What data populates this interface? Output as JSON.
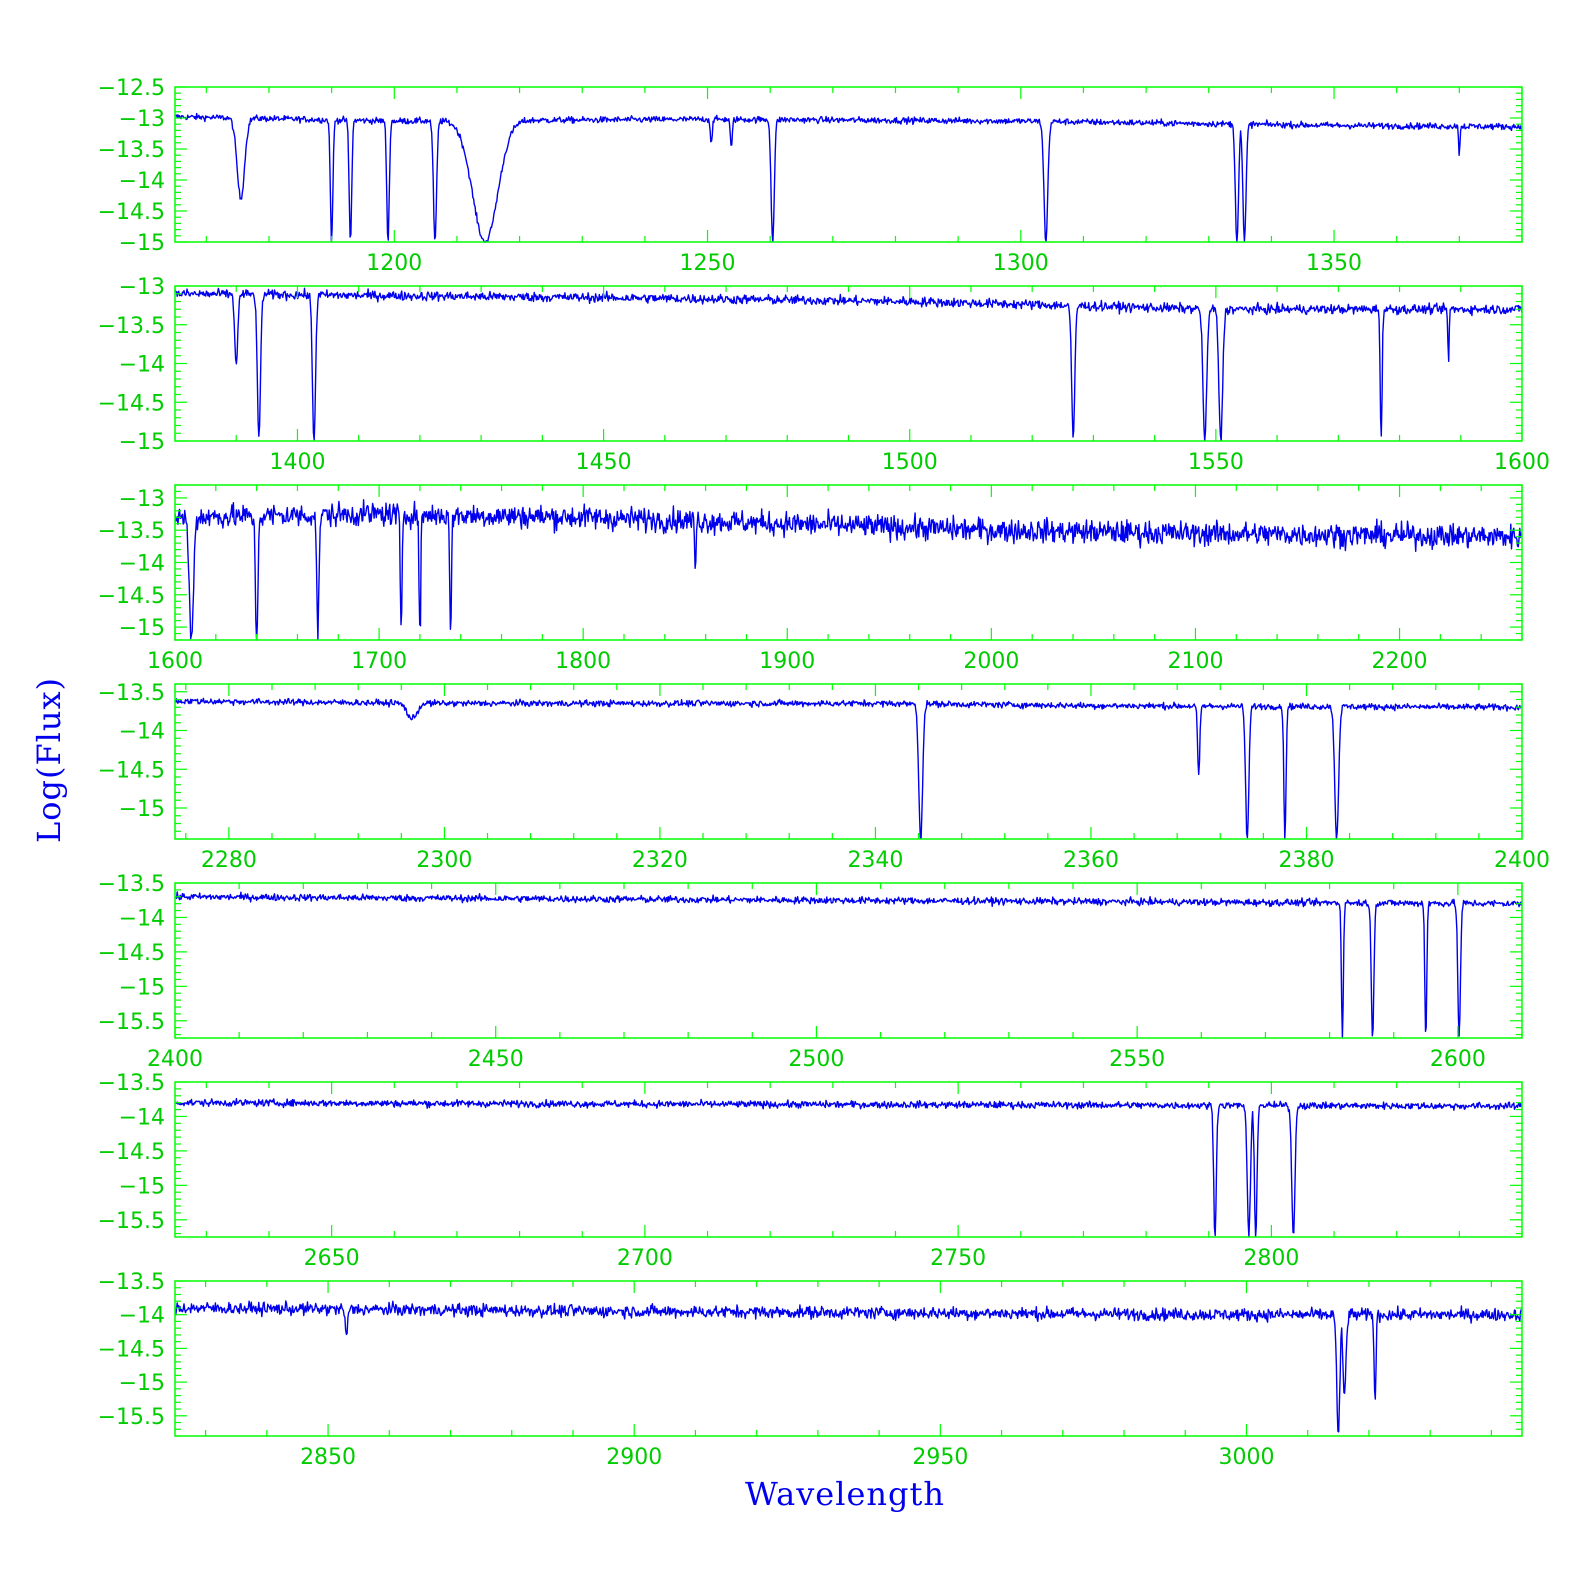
{
  "colors": {
    "frame": "#00ff00",
    "tick_labels": "#00cc00",
    "data": "#0000ee",
    "axis_titles": "#0000ee"
  },
  "chart_data": {
    "type": "line",
    "xlabel": "Wavelength",
    "ylabel": "Log(Flux)",
    "grid": false,
    "panels": [
      {
        "xlim": [
          1165,
          1380
        ],
        "ylim": [
          -15,
          -12.5
        ],
        "xticks": [
          1200,
          1250,
          1300,
          1350
        ],
        "xtick_labels": [
          "1200",
          "1250",
          "1300",
          "1350"
        ],
        "yticks": [
          -12.5,
          -13,
          -13.5,
          -14,
          -14.5,
          -15
        ],
        "ytick_labels": [
          "-12.5",
          "-13",
          "-13.5",
          "-14",
          "-14.5",
          "-15"
        ],
        "continuum": [
          [
            1165,
            -12.98
          ],
          [
            1200,
            -13.05
          ],
          [
            1250,
            -13.02
          ],
          [
            1300,
            -13.05
          ],
          [
            1350,
            -13.12
          ],
          [
            1380,
            -13.14
          ]
        ],
        "features": [
          [
            1175.5,
            -14.3,
            1.2
          ],
          [
            1190,
            -15.0,
            0.4
          ],
          [
            1193,
            -15.0,
            0.4
          ],
          [
            1199,
            -15.0,
            0.4
          ],
          [
            1206.5,
            -15.0,
            0.5
          ],
          [
            1214.5,
            -15.0,
            4.0
          ],
          [
            1250.6,
            -13.4,
            0.3
          ],
          [
            1253.8,
            -13.5,
            0.3
          ],
          [
            1260.4,
            -15.0,
            0.5
          ],
          [
            1304,
            -15.0,
            0.6
          ],
          [
            1334.5,
            -15.0,
            0.5
          ],
          [
            1335.7,
            -15.0,
            0.5
          ],
          [
            1370,
            -13.6,
            0.2
          ]
        ],
        "noise": 0.05
      },
      {
        "xlim": [
          1380,
          1600
        ],
        "ylim": [
          -15,
          -13
        ],
        "xticks": [
          1400,
          1450,
          1500,
          1550,
          1600
        ],
        "xtick_labels": [
          "1400",
          "1450",
          "1500",
          "1550",
          "1600"
        ],
        "yticks": [
          -13,
          -13.5,
          -14,
          -14.5,
          -15
        ],
        "ytick_labels": [
          "-13",
          "-13.5",
          "-14",
          "-14.5",
          "-15"
        ],
        "continuum": [
          [
            1380,
            -13.1
          ],
          [
            1450,
            -13.15
          ],
          [
            1500,
            -13.2
          ],
          [
            1550,
            -13.3
          ],
          [
            1600,
            -13.3
          ]
        ],
        "features": [
          [
            1390,
            -14.0,
            0.5
          ],
          [
            1393.7,
            -15.0,
            0.5
          ],
          [
            1402.7,
            -15.0,
            0.5
          ],
          [
            1526.7,
            -15.0,
            0.5
          ],
          [
            1548.2,
            -15.0,
            0.6
          ],
          [
            1550.8,
            -15.0,
            0.6
          ],
          [
            1577,
            -15.0,
            0.3
          ],
          [
            1588,
            -14.0,
            0.2
          ]
        ],
        "noise": 0.06
      },
      {
        "xlim": [
          1600,
          2260
        ],
        "ylim": [
          -15.2,
          -12.8
        ],
        "xticks": [
          1600,
          1700,
          1800,
          1900,
          2000,
          2100,
          2200
        ],
        "xtick_labels": [
          "1600",
          "1700",
          "1800",
          "1900",
          "2000",
          "2100",
          "2200"
        ],
        "yticks": [
          -13,
          -13.5,
          -14,
          -14.5,
          -15
        ],
        "ytick_labels": [
          "-13",
          "-13.5",
          "-14",
          "-14.5",
          "-15"
        ],
        "continuum": [
          [
            1600,
            -13.3
          ],
          [
            1700,
            -13.25
          ],
          [
            1800,
            -13.3
          ],
          [
            1900,
            -13.4
          ],
          [
            2000,
            -13.5
          ],
          [
            2100,
            -13.55
          ],
          [
            2260,
            -13.6
          ]
        ],
        "features": [
          [
            1608,
            -15.2,
            2.0
          ],
          [
            1640,
            -15.2,
            1.2
          ],
          [
            1670,
            -15.2,
            1.0
          ],
          [
            1710.8,
            -15.2,
            0.8
          ],
          [
            1720,
            -15.2,
            0.8
          ],
          [
            1735,
            -15.2,
            0.8
          ],
          [
            1855,
            -14.2,
            0.6
          ]
        ],
        "noise": 0.18
      },
      {
        "xlim": [
          2275,
          2400
        ],
        "ylim": [
          -15.4,
          -13.4
        ],
        "xticks": [
          2280,
          2300,
          2320,
          2340,
          2360,
          2380,
          2400
        ],
        "xtick_labels": [
          "2280",
          "2300",
          "2320",
          "2340",
          "2360",
          "2380",
          "2400"
        ],
        "yticks": [
          -13.5,
          -14,
          -14.5,
          -15
        ],
        "ytick_labels": [
          "-13.5",
          "-14",
          "-14.5",
          "-15"
        ],
        "continuum": [
          [
            2275,
            -13.62
          ],
          [
            2300,
            -13.65
          ],
          [
            2340,
            -13.65
          ],
          [
            2360,
            -13.68
          ],
          [
            2400,
            -13.7
          ]
        ],
        "features": [
          [
            2297,
            -13.85,
            0.9
          ],
          [
            2344.2,
            -15.4,
            0.35
          ],
          [
            2374.5,
            -15.4,
            0.3
          ],
          [
            2382.8,
            -15.4,
            0.35
          ],
          [
            2370,
            -14.6,
            0.2
          ],
          [
            2378,
            -15.4,
            0.2
          ]
        ],
        "noise": 0.04
      },
      {
        "xlim": [
          2400,
          2610
        ],
        "ylim": [
          -15.75,
          -13.5
        ],
        "xticks": [
          2400,
          2450,
          2500,
          2550,
          2600
        ],
        "xtick_labels": [
          "2400",
          "2450",
          "2500",
          "2550",
          "2600"
        ],
        "yticks": [
          -13.5,
          -14,
          -14.5,
          -15,
          -15.5
        ],
        "ytick_labels": [
          "-13.5",
          "-14",
          "-14.5",
          "-15",
          "-15.5"
        ],
        "continuum": [
          [
            2400,
            -13.7
          ],
          [
            2500,
            -13.75
          ],
          [
            2610,
            -13.8
          ]
        ],
        "features": [
          [
            2586.7,
            -15.75,
            0.4
          ],
          [
            2600.2,
            -15.75,
            0.4
          ],
          [
            2595,
            -15.75,
            0.3
          ],
          [
            2582,
            -15.75,
            0.3
          ]
        ],
        "noise": 0.05
      },
      {
        "xlim": [
          2625,
          2840
        ],
        "ylim": [
          -15.75,
          -13.5
        ],
        "xticks": [
          2650,
          2700,
          2750,
          2800
        ],
        "xtick_labels": [
          "2650",
          "2700",
          "2750",
          "2800"
        ],
        "yticks": [
          -13.5,
          -14,
          -14.5,
          -15,
          -15.5
        ],
        "ytick_labels": [
          "-13.5",
          "-14",
          "-14.5",
          "-15",
          "-15.5"
        ],
        "continuum": [
          [
            2625,
            -13.8
          ],
          [
            2700,
            -13.82
          ],
          [
            2840,
            -13.85
          ]
        ],
        "features": [
          [
            2796.4,
            -15.75,
            0.5
          ],
          [
            2803.5,
            -15.75,
            0.5
          ],
          [
            2791,
            -15.75,
            0.4
          ],
          [
            2797.5,
            -15.75,
            0.4
          ]
        ],
        "noise": 0.05
      },
      {
        "xlim": [
          2825,
          3045
        ],
        "ylim": [
          -15.8,
          -13.5
        ],
        "xticks": [
          2850,
          2900,
          2950,
          3000
        ],
        "xtick_labels": [
          "2850",
          "2900",
          "2950",
          "3000"
        ],
        "yticks": [
          -13.5,
          -14,
          -14.5,
          -15,
          -15.5
        ],
        "ytick_labels": [
          "-13.5",
          "-14",
          "-14.5",
          "-15",
          "-15.5"
        ],
        "continuum": [
          [
            2825,
            -13.9
          ],
          [
            2900,
            -13.95
          ],
          [
            3000,
            -14.0
          ],
          [
            3045,
            -14.0
          ]
        ],
        "features": [
          [
            2853,
            -14.3,
            0.4
          ],
          [
            3015,
            -15.8,
            0.5
          ],
          [
            3016,
            -15.2,
            0.5
          ],
          [
            3021,
            -15.3,
            0.3
          ]
        ],
        "noise": 0.09
      }
    ]
  }
}
